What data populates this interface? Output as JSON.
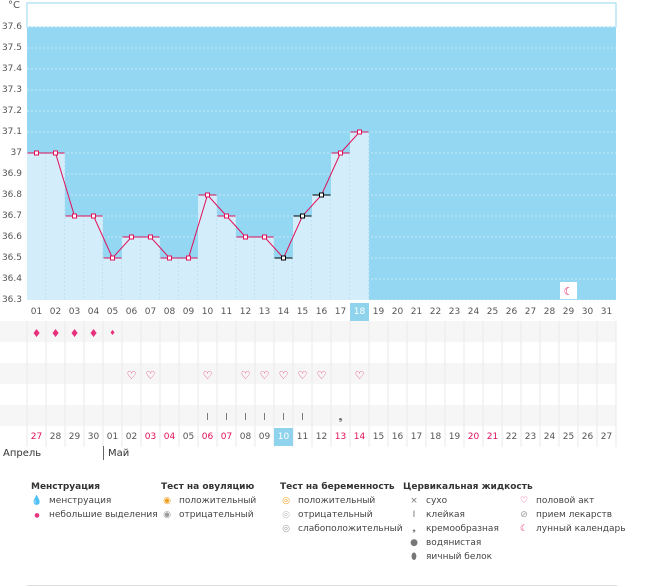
{
  "chart_data": {
    "type": "line",
    "unit": "°C",
    "ylim": [
      36.3,
      37.6
    ],
    "yticks": [
      "37.6",
      "37.5",
      "37.4",
      "37.3",
      "37.2",
      "37.1",
      "37",
      "36.9",
      "36.8",
      "36.7",
      "36.6",
      "36.5",
      "36.4",
      "36.3"
    ],
    "x": [
      "01",
      "02",
      "03",
      "04",
      "05",
      "06",
      "07",
      "08",
      "09",
      "10",
      "11",
      "12",
      "13",
      "14",
      "15",
      "16",
      "17",
      "18",
      "19",
      "20",
      "21",
      "22",
      "23",
      "24",
      "25",
      "26",
      "27",
      "28",
      "29",
      "30",
      "31"
    ],
    "values": [
      37.0,
      37.0,
      36.7,
      36.7,
      36.5,
      36.6,
      36.6,
      36.5,
      36.5,
      36.8,
      36.7,
      36.6,
      36.6,
      36.5,
      36.7,
      36.8,
      37.0,
      37.1,
      null,
      null,
      null,
      null,
      null,
      null,
      null,
      null,
      null,
      null,
      null,
      null,
      null
    ],
    "special_points": [
      13,
      14,
      15
    ],
    "selected_index": 17,
    "colors": {
      "area_bg": "#94d7f2",
      "bar": "#d3eefa",
      "line": "#e0105a",
      "bar_line": "#a9d7ee"
    }
  },
  "menstruation_rows": {
    "big": [
      0,
      1,
      2,
      3
    ],
    "small": [
      0,
      1,
      2,
      3,
      4
    ]
  },
  "heart_row": [
    5,
    6,
    9,
    11,
    12,
    13,
    14,
    15,
    17
  ],
  "stick_row": [
    9,
    10,
    11,
    12,
    13,
    14
  ],
  "mucus_icon_index": 16,
  "moon_index": 28,
  "cycle_days": [
    "27",
    "28",
    "29",
    "30",
    "01",
    "02",
    "03",
    "04",
    "05",
    "06",
    "07",
    "08",
    "09",
    "10",
    "11",
    "12",
    "13",
    "14",
    "15",
    "16",
    "17",
    "18",
    "19",
    "20",
    "21",
    "22",
    "23",
    "24",
    "25",
    "26",
    "27"
  ],
  "cycle_red": [
    0,
    6,
    7,
    9,
    10,
    16,
    17,
    23,
    24
  ],
  "cycle_selected": 13,
  "months": {
    "april": "Апрель",
    "may": "Май"
  },
  "legend": {
    "menstruation": {
      "title": "Менструация",
      "items": [
        "менструация",
        "небольшие выделения"
      ]
    },
    "ovulation": {
      "title": "Тест на овуляцию",
      "items": [
        "положительный",
        "отрицательный"
      ]
    },
    "pregnancy": {
      "title": "Тест на беременность",
      "items": [
        "положительный",
        "отрицательный",
        "слабоположительный"
      ]
    },
    "cervical": {
      "title": "Цервикальная жидкость",
      "items": [
        "сухо",
        "клейкая",
        "кремообразная",
        "водянистая",
        "яичный белок"
      ]
    },
    "other": {
      "items": [
        "половой акт",
        "прием лекарств",
        "лунный календарь"
      ]
    }
  },
  "icons": [
    "drop-icon",
    "heart-icon",
    "stick-icon",
    "moon-icon",
    "cross-icon",
    "circle-icon"
  ]
}
